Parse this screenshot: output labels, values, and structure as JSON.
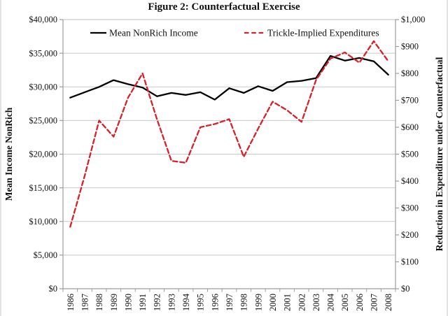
{
  "title": "Figure 2: Counterfactual Exercise",
  "colors": {
    "income_line": "#000000",
    "expenditure_line": "#d8202a",
    "gridline": "#c9c9c9",
    "axis_line": "#9c9c9c",
    "text": "#111111",
    "background": "#ffffff"
  },
  "chart_data": {
    "type": "line",
    "title": "Figure 2: Counterfactual Exercise",
    "grid": true,
    "legend_position": "top-inside",
    "categories": [
      "1986",
      "1987",
      "1988",
      "1989",
      "1990",
      "1991",
      "1992",
      "1993",
      "1994",
      "1995",
      "1996",
      "1997",
      "1998",
      "1999",
      "2000",
      "2001",
      "2002",
      "2003",
      "2004",
      "2005",
      "2006",
      "2007",
      "2008"
    ],
    "series": [
      {
        "name": "Mean NonRich Income",
        "axis": "left",
        "style": "solid",
        "color": "#000000",
        "values": [
          28400,
          29200,
          30000,
          31000,
          30400,
          29900,
          28600,
          29100,
          28800,
          29200,
          28100,
          29800,
          29100,
          30100,
          29400,
          30700,
          30900,
          31300,
          34600,
          33900,
          34300,
          33800,
          31800
        ]
      },
      {
        "name": "Trickle-Implied Expenditures",
        "axis": "right",
        "style": "dashed",
        "color": "#d8202a",
        "values": [
          230,
          420,
          625,
          565,
          710,
          800,
          630,
          475,
          468,
          600,
          612,
          630,
          490,
          595,
          695,
          663,
          620,
          775,
          855,
          878,
          840,
          920,
          845
        ]
      }
    ],
    "left_axis": {
      "label": "Mean Income NonRich",
      "min": 0,
      "max": 40000,
      "tick_step": 5000,
      "tick_labels": [
        "$0",
        "$5,000",
        "$10,000",
        "$15,000",
        "$20,000",
        "$25,000",
        "$30,000",
        "$35,000",
        "$40,000"
      ]
    },
    "right_axis": {
      "label": "Reduction in Expenditure under Counterfactual",
      "min": 0,
      "max": 1000,
      "tick_step": 100,
      "tick_labels": [
        "$0",
        "$100",
        "$200",
        "$300",
        "$400",
        "$500",
        "$600",
        "$700",
        "$800",
        "$900",
        "$1,000"
      ]
    },
    "x_axis": {
      "label": "",
      "tick_label_rotation": -90
    }
  }
}
